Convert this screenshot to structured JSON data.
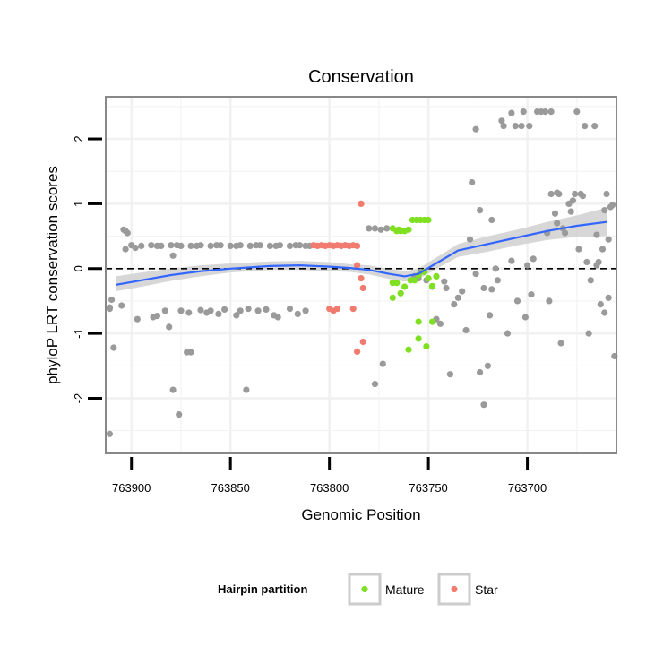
{
  "chart_data": {
    "type": "scatter",
    "title": "Conservation",
    "xlabel": "Genomic Position",
    "ylabel": "phyloP LRT conservation scores",
    "x_reversed": true,
    "xlim": [
      763913,
      763655
    ],
    "ylim": [
      -2.85,
      2.65
    ],
    "x_ticks": [
      763900,
      763850,
      763800,
      763750,
      763700
    ],
    "y_ticks": [
      -2,
      -1,
      0,
      1,
      2
    ],
    "reference_line": {
      "y": 0,
      "style": "dashed"
    },
    "colors": {
      "background_point": "#9a9a9a",
      "Mature": "#7ee020",
      "Star": "#f07b6e",
      "smooth_line": "#3366ff",
      "smooth_band": "#d3d3d3",
      "panel_border": "#888888",
      "grid": "#f1f1f1"
    },
    "legend": {
      "title": "Hairpin partition",
      "position": "bottom",
      "entries": [
        {
          "label": "Mature",
          "series": "Mature"
        },
        {
          "label": "Star",
          "series": "Star"
        }
      ]
    },
    "series": [
      {
        "name": "Other",
        "points": [
          [
            763911,
            -2.55
          ],
          [
            763909,
            -1.22
          ],
          [
            763911,
            -0.6
          ],
          [
            763910,
            -0.48
          ],
          [
            763911,
            -0.62
          ],
          [
            763905,
            -0.57
          ],
          [
            763904,
            0.6
          ],
          [
            763903,
            0.58
          ],
          [
            763902,
            0.55
          ],
          [
            763903,
            0.3
          ],
          [
            763898,
            0.32
          ],
          [
            763895,
            0.35
          ],
          [
            763890,
            0.36
          ],
          [
            763885,
            0.35
          ],
          [
            763880,
            0.36
          ],
          [
            763875,
            0.35
          ],
          [
            763870,
            0.35
          ],
          [
            763865,
            0.36
          ],
          [
            763860,
            0.35
          ],
          [
            763855,
            0.36
          ],
          [
            763850,
            0.35
          ],
          [
            763845,
            0.36
          ],
          [
            763840,
            0.35
          ],
          [
            763835,
            0.36
          ],
          [
            763830,
            0.35
          ],
          [
            763825,
            0.36
          ],
          [
            763820,
            0.35
          ],
          [
            763815,
            0.36
          ],
          [
            763810,
            0.35
          ],
          [
            763900,
            0.36
          ],
          [
            763887,
            0.35
          ],
          [
            763877,
            0.36
          ],
          [
            763867,
            0.35
          ],
          [
            763857,
            0.36
          ],
          [
            763847,
            0.35
          ],
          [
            763837,
            0.36
          ],
          [
            763827,
            0.35
          ],
          [
            763817,
            0.36
          ],
          [
            763812,
            0.35
          ],
          [
            763897,
            -0.78
          ],
          [
            763889,
            -0.75
          ],
          [
            763887,
            -0.73
          ],
          [
            763883,
            -0.65
          ],
          [
            763881,
            -0.9
          ],
          [
            763875,
            -0.65
          ],
          [
            763871,
            -0.68
          ],
          [
            763865,
            -0.64
          ],
          [
            763862,
            -0.68
          ],
          [
            763860,
            -0.65
          ],
          [
            763856,
            -0.7
          ],
          [
            763853,
            -0.63
          ],
          [
            763847,
            -0.72
          ],
          [
            763845,
            -0.65
          ],
          [
            763841,
            -0.62
          ],
          [
            763836,
            -0.65
          ],
          [
            763832,
            -0.63
          ],
          [
            763828,
            -0.72
          ],
          [
            763826,
            -0.75
          ],
          [
            763820,
            -0.62
          ],
          [
            763816,
            -0.7
          ],
          [
            763812,
            -0.65
          ],
          [
            763879,
            0.2
          ],
          [
            763879,
            -1.87
          ],
          [
            763876,
            -2.25
          ],
          [
            763872,
            -1.29
          ],
          [
            763870,
            -1.29
          ],
          [
            763842,
            -1.87
          ],
          [
            763780,
            0.62
          ],
          [
            763777,
            0.62
          ],
          [
            763774,
            0.6
          ],
          [
            763771,
            0.62
          ],
          [
            763777,
            -1.78
          ],
          [
            763773,
            -1.47
          ],
          [
            763757,
            -0.12
          ],
          [
            763755,
            -0.15
          ],
          [
            763754,
            -0.05
          ],
          [
            763751,
            -0.18
          ],
          [
            763748,
            -0.28
          ],
          [
            763746,
            -0.78
          ],
          [
            763744,
            -0.85
          ],
          [
            763742,
            -0.2
          ],
          [
            763741,
            -0.3
          ],
          [
            763739,
            -1.63
          ],
          [
            763737,
            -0.55
          ],
          [
            763735,
            -0.45
          ],
          [
            763733,
            -0.35
          ],
          [
            763731,
            -0.95
          ],
          [
            763729,
            0.45
          ],
          [
            763728,
            1.33
          ],
          [
            763726,
            2.15
          ],
          [
            763726,
            -0.08
          ],
          [
            763724,
            0.9
          ],
          [
            763724,
            -1.6
          ],
          [
            763722,
            -2.1
          ],
          [
            763722,
            -0.3
          ],
          [
            763720,
            -1.5
          ],
          [
            763719,
            -0.72
          ],
          [
            763718,
            -0.32
          ],
          [
            763718,
            0.75
          ],
          [
            763716,
            0.0
          ],
          [
            763715,
            -0.18
          ],
          [
            763713,
            2.28
          ],
          [
            763712,
            2.2
          ],
          [
            763710,
            -1.0
          ],
          [
            763708,
            2.4
          ],
          [
            763708,
            0.12
          ],
          [
            763706,
            2.2
          ],
          [
            763705,
            -0.5
          ],
          [
            763703,
            2.2
          ],
          [
            763702,
            2.42
          ],
          [
            763701,
            -0.75
          ],
          [
            763700,
            0.05
          ],
          [
            763699,
            2.2
          ],
          [
            763698,
            -0.4
          ],
          [
            763697,
            0.15
          ],
          [
            763695,
            2.42
          ],
          [
            763693,
            2.42
          ],
          [
            763691,
            2.42
          ],
          [
            763690,
            0.55
          ],
          [
            763689,
            -0.5
          ],
          [
            763688,
            2.42
          ],
          [
            763688,
            1.15
          ],
          [
            763686,
            0.85
          ],
          [
            763685,
            1.17
          ],
          [
            763685,
            0.7
          ],
          [
            763684,
            1.15
          ],
          [
            763683,
            -1.15
          ],
          [
            763682,
            0.62
          ],
          [
            763681,
            0.55
          ],
          [
            763679,
            1.0
          ],
          [
            763678,
            0.88
          ],
          [
            763677,
            1.05
          ],
          [
            763676,
            1.15
          ],
          [
            763675,
            2.42
          ],
          [
            763674,
            0.3
          ],
          [
            763673,
            1.15
          ],
          [
            763672,
            1.12
          ],
          [
            763671,
            2.2
          ],
          [
            763670,
            0.1
          ],
          [
            763669,
            -1.0
          ],
          [
            763668,
            -0.18
          ],
          [
            763666,
            2.2
          ],
          [
            763665,
            0.05
          ],
          [
            763665,
            0.52
          ],
          [
            763664,
            0.1
          ],
          [
            763663,
            -0.55
          ],
          [
            763662,
            0.3
          ],
          [
            763661,
            0.9
          ],
          [
            763661,
            -0.68
          ],
          [
            763660,
            1.15
          ],
          [
            763659,
            0.45
          ],
          [
            763659,
            -0.45
          ],
          [
            763658,
            0.95
          ],
          [
            763657,
            0.98
          ],
          [
            763656,
            -1.35
          ]
        ]
      },
      {
        "name": "Star",
        "points": [
          [
            763808,
            0.36
          ],
          [
            763806,
            0.35
          ],
          [
            763804,
            0.36
          ],
          [
            763802,
            0.35
          ],
          [
            763800,
            0.36
          ],
          [
            763798,
            0.35
          ],
          [
            763796,
            0.36
          ],
          [
            763794,
            0.35
          ],
          [
            763792,
            0.36
          ],
          [
            763790,
            0.35
          ],
          [
            763788,
            0.36
          ],
          [
            763786,
            0.35
          ],
          [
            763800,
            -0.62
          ],
          [
            763798,
            -0.65
          ],
          [
            763796,
            -0.62
          ],
          [
            763788,
            -0.62
          ],
          [
            763786,
            0.05
          ],
          [
            763784,
            1.0
          ],
          [
            763784,
            -0.15
          ],
          [
            763783,
            -0.3
          ],
          [
            763783,
            -1.13
          ],
          [
            763786,
            -1.28
          ]
        ]
      },
      {
        "name": "Mature",
        "points": [
          [
            763768,
            0.62
          ],
          [
            763766,
            0.58
          ],
          [
            763764,
            0.58
          ],
          [
            763762,
            0.58
          ],
          [
            763760,
            0.6
          ],
          [
            763765,
            0.6
          ],
          [
            763758,
            0.75
          ],
          [
            763756,
            0.75
          ],
          [
            763754,
            0.75
          ],
          [
            763752,
            0.75
          ],
          [
            763750,
            0.75
          ],
          [
            763768,
            -0.22
          ],
          [
            763766,
            -0.22
          ],
          [
            763768,
            -0.45
          ],
          [
            763764,
            -0.38
          ],
          [
            763762,
            -0.28
          ],
          [
            763759,
            -0.18
          ],
          [
            763757,
            -0.18
          ],
          [
            763755,
            -0.1
          ],
          [
            763752,
            -0.05
          ],
          [
            763750,
            -0.15
          ],
          [
            763746,
            -0.12
          ],
          [
            763748,
            -0.27
          ],
          [
            763755,
            -0.82
          ],
          [
            763748,
            -0.82
          ],
          [
            763760,
            -1.25
          ],
          [
            763755,
            -1.08
          ],
          [
            763751,
            -1.2
          ]
        ]
      }
    ],
    "smooth": {
      "x": [
        763908,
        763895,
        763880,
        763865,
        763850,
        763830,
        763815,
        763800,
        763790,
        763780,
        763770,
        763762,
        763755,
        763745,
        763735,
        763720,
        763705,
        763690,
        763675,
        763660
      ],
      "y": [
        -0.25,
        -0.18,
        -0.1,
        -0.04,
        0.0,
        0.04,
        0.05,
        0.03,
        0.01,
        -0.02,
        -0.08,
        -0.12,
        -0.08,
        0.1,
        0.28,
        0.38,
        0.48,
        0.58,
        0.66,
        0.72
      ],
      "low": [
        -0.35,
        -0.28,
        -0.19,
        -0.12,
        -0.06,
        -0.02,
        -0.02,
        -0.04,
        -0.05,
        -0.09,
        -0.16,
        -0.2,
        -0.16,
        0.01,
        0.18,
        0.26,
        0.36,
        0.44,
        0.49,
        0.5
      ],
      "high": [
        -0.12,
        -0.06,
        0.0,
        0.05,
        0.08,
        0.11,
        0.12,
        0.1,
        0.07,
        0.05,
        0.0,
        -0.04,
        0.0,
        0.19,
        0.38,
        0.5,
        0.6,
        0.72,
        0.82,
        0.94
      ]
    }
  }
}
